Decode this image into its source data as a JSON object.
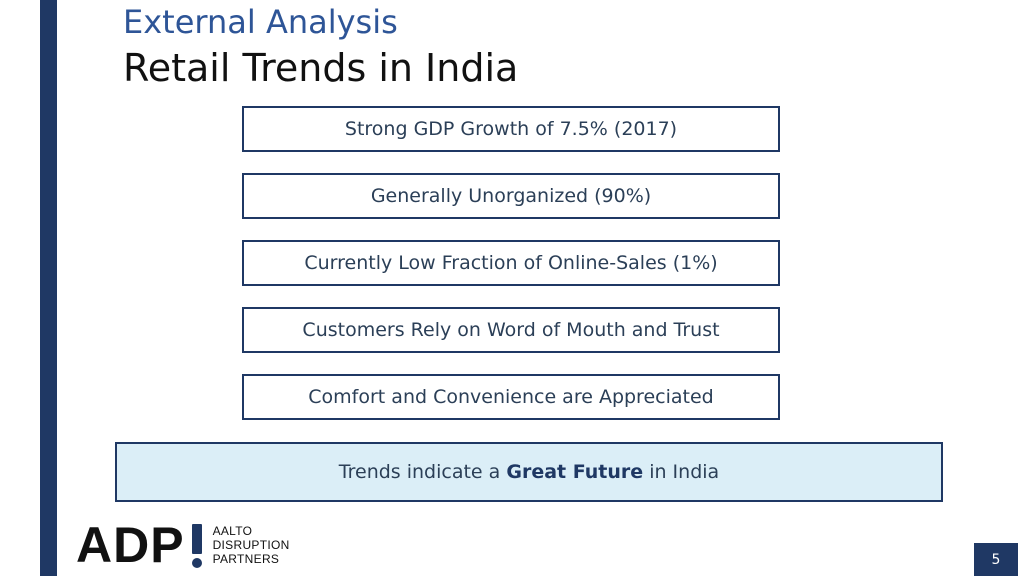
{
  "slide": {
    "title_top": "External Analysis",
    "title_main": "Retail Trends in India",
    "page_number": "5"
  },
  "trends": [
    "Strong GDP Growth of 7.5% (2017)",
    "Generally Unorganized (90%)",
    "Currently Low Fraction of Online-Sales (1%)",
    "Customers Rely on Word of Mouth and Trust",
    "Comfort and Convenience are Appreciated"
  ],
  "conclusion": {
    "prefix": "Trends indicate a ",
    "emphasis": "Great Future",
    "suffix": " in India"
  },
  "logo": {
    "mark": "ADP",
    "line1": "AALTO",
    "line2": "DISRUPTION",
    "line3": "PARTNERS"
  },
  "colors": {
    "accent": "#1f3864",
    "title_blue": "#2e5597",
    "conclusion_bg": "#dbeef7"
  }
}
